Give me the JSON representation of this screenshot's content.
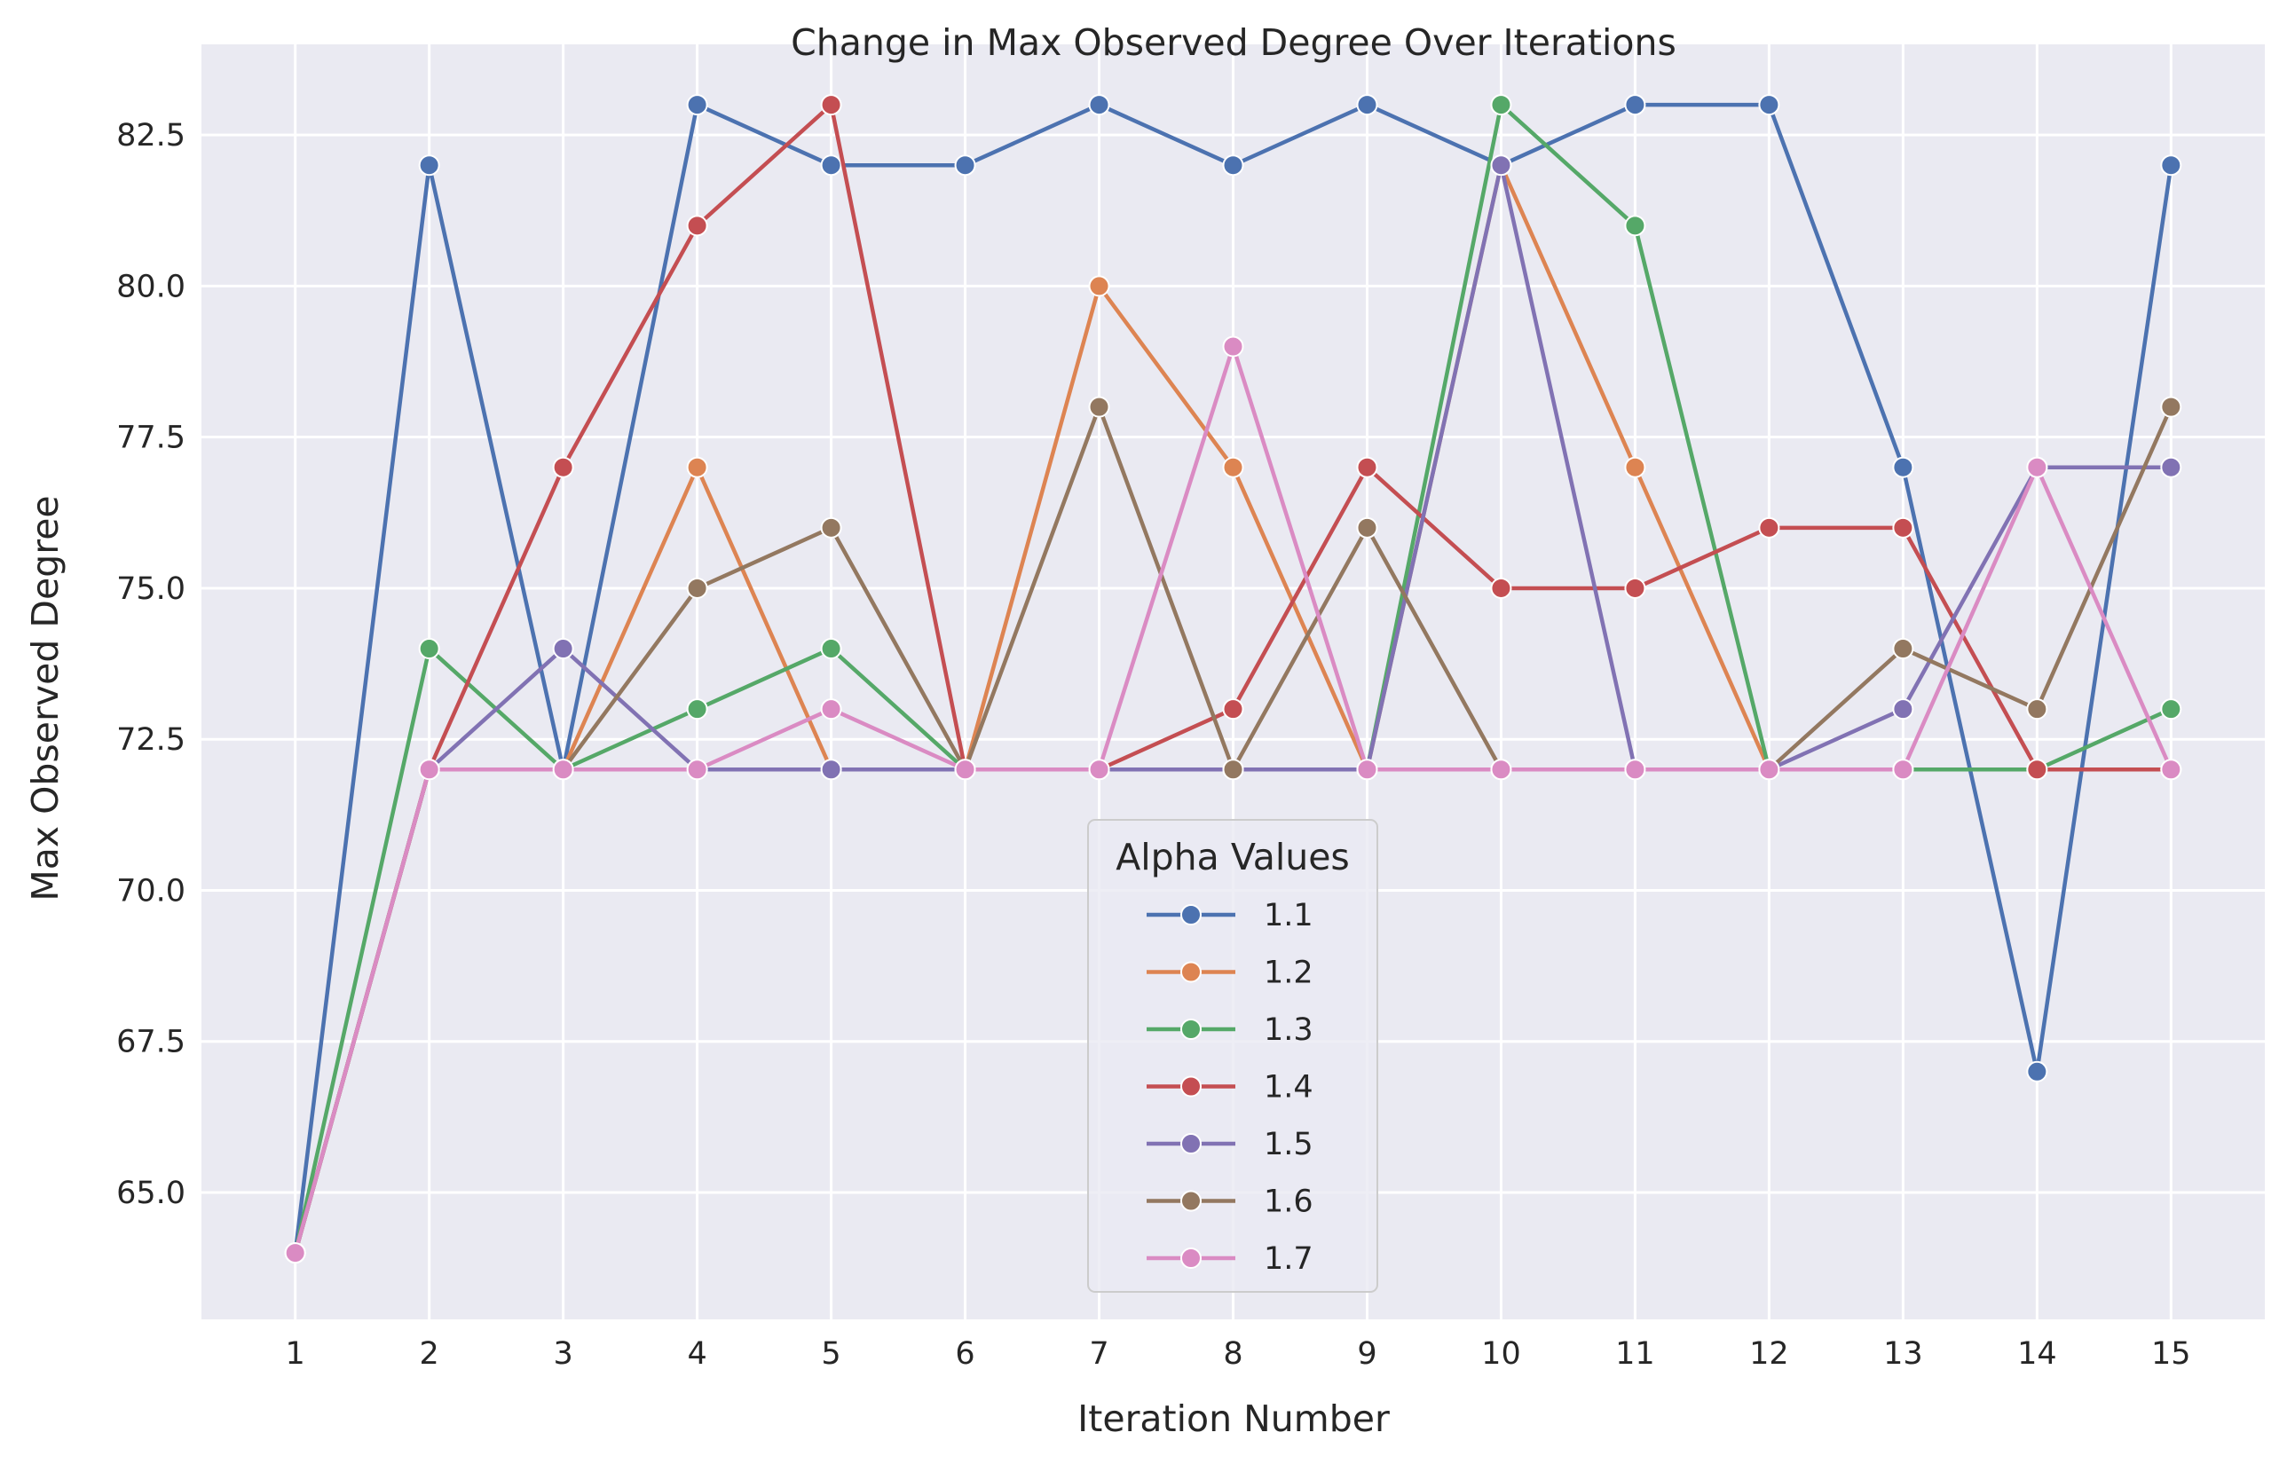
{
  "chart_data": {
    "type": "line",
    "title": "Change in Max Observed Degree Over Iterations",
    "xlabel": "Iteration Number",
    "ylabel": "Max Observed Degree",
    "x": [
      1,
      2,
      3,
      4,
      5,
      6,
      7,
      8,
      9,
      10,
      11,
      12,
      13,
      14,
      15
    ],
    "xlim": [
      0.3,
      15.7
    ],
    "ylim": [
      62.9,
      84.0
    ],
    "yticks": [
      65.0,
      67.5,
      70.0,
      72.5,
      75.0,
      77.5,
      80.0,
      82.5
    ],
    "ytick_labels": [
      "65.0",
      "67.5",
      "70.0",
      "72.5",
      "75.0",
      "77.5",
      "80.0",
      "82.5"
    ],
    "xtick_labels": [
      "1",
      "2",
      "3",
      "4",
      "5",
      "6",
      "7",
      "8",
      "9",
      "10",
      "11",
      "12",
      "13",
      "14",
      "15"
    ],
    "grid": true,
    "background": "#eaeaf2",
    "legend": {
      "title": "Alpha Values",
      "placement": "bottom-center"
    },
    "series": [
      {
        "name": "1.1",
        "color": "#4c72b0",
        "values": [
          64,
          82,
          72,
          83,
          82,
          82,
          83,
          82,
          83,
          82,
          83,
          83,
          77,
          67,
          82
        ]
      },
      {
        "name": "1.2",
        "color": "#dd8452",
        "values": [
          64,
          72,
          72,
          77,
          72,
          72,
          80,
          77,
          72,
          82,
          77,
          72,
          72,
          72,
          72
        ]
      },
      {
        "name": "1.3",
        "color": "#55a868",
        "values": [
          64,
          74,
          72,
          73,
          74,
          72,
          72,
          72,
          72,
          83,
          81,
          72,
          72,
          72,
          73
        ]
      },
      {
        "name": "1.4",
        "color": "#c44e52",
        "values": [
          64,
          72,
          77,
          81,
          83,
          72,
          72,
          73,
          77,
          75,
          75,
          76,
          76,
          72,
          72
        ]
      },
      {
        "name": "1.5",
        "color": "#8172b3",
        "values": [
          64,
          72,
          74,
          72,
          72,
          72,
          72,
          72,
          72,
          82,
          72,
          72,
          73,
          77,
          77
        ]
      },
      {
        "name": "1.6",
        "color": "#937860",
        "values": [
          64,
          72,
          72,
          75,
          76,
          72,
          78,
          72,
          76,
          72,
          72,
          72,
          74,
          73,
          78
        ]
      },
      {
        "name": "1.7",
        "color": "#da8bc3",
        "values": [
          64,
          72,
          72,
          72,
          73,
          72,
          72,
          79,
          72,
          72,
          72,
          72,
          72,
          77,
          72
        ]
      }
    ]
  }
}
